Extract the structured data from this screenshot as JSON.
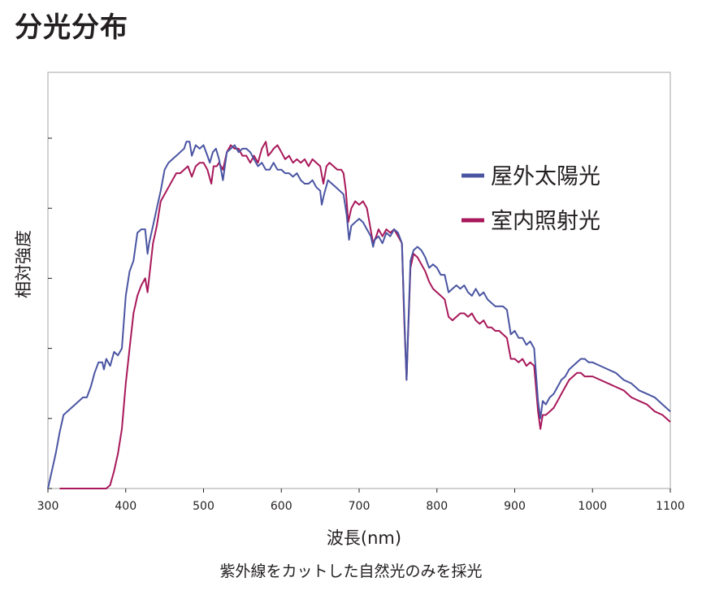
{
  "title": "分光分布",
  "caption": "紫外線をカットした自然光のみを採光",
  "colors": {
    "outdoor": "#4a55a2",
    "indoor": "#a8185a",
    "frame": "#b5b5b5",
    "axis": "#231f20"
  },
  "chart_data": {
    "type": "line",
    "xlabel": "波長(nm)",
    "ylabel": "相対強度",
    "xlim": [
      300,
      1100
    ],
    "ylim": [
      0,
      1
    ],
    "x_ticks": [
      300,
      400,
      500,
      600,
      700,
      800,
      900,
      1000,
      1100
    ],
    "y_ticks": [
      0,
      0.2,
      0.4,
      0.6,
      0.8,
      1.0
    ],
    "grid": false,
    "legend_position": "top-right",
    "series": [
      {
        "name": "屋外太陽光",
        "color": "#4a55a2",
        "points": [
          [
            300,
            0.0
          ],
          [
            305,
            0.05
          ],
          [
            310,
            0.1
          ],
          [
            315,
            0.16
          ],
          [
            320,
            0.21
          ],
          [
            325,
            0.22
          ],
          [
            330,
            0.23
          ],
          [
            335,
            0.24
          ],
          [
            340,
            0.25
          ],
          [
            345,
            0.26
          ],
          [
            350,
            0.26
          ],
          [
            355,
            0.29
          ],
          [
            360,
            0.33
          ],
          [
            365,
            0.36
          ],
          [
            370,
            0.36
          ],
          [
            372,
            0.34
          ],
          [
            375,
            0.37
          ],
          [
            380,
            0.35
          ],
          [
            385,
            0.39
          ],
          [
            390,
            0.38
          ],
          [
            395,
            0.4
          ],
          [
            400,
            0.55
          ],
          [
            405,
            0.62
          ],
          [
            410,
            0.65
          ],
          [
            415,
            0.73
          ],
          [
            420,
            0.74
          ],
          [
            425,
            0.74
          ],
          [
            428,
            0.67
          ],
          [
            430,
            0.7
          ],
          [
            435,
            0.75
          ],
          [
            440,
            0.8
          ],
          [
            445,
            0.85
          ],
          [
            450,
            0.91
          ],
          [
            455,
            0.93
          ],
          [
            460,
            0.94
          ],
          [
            465,
            0.95
          ],
          [
            470,
            0.96
          ],
          [
            475,
            0.97
          ],
          [
            478,
            0.99
          ],
          [
            482,
            0.99
          ],
          [
            485,
            0.95
          ],
          [
            490,
            0.98
          ],
          [
            495,
            0.97
          ],
          [
            500,
            0.98
          ],
          [
            505,
            0.95
          ],
          [
            508,
            0.93
          ],
          [
            512,
            0.96
          ],
          [
            516,
            0.97
          ],
          [
            520,
            0.94
          ],
          [
            525,
            0.88
          ],
          [
            530,
            0.96
          ],
          [
            535,
            0.97
          ],
          [
            540,
            0.98
          ],
          [
            545,
            0.96
          ],
          [
            550,
            0.97
          ],
          [
            555,
            0.97
          ],
          [
            560,
            0.96
          ],
          [
            565,
            0.94
          ],
          [
            570,
            0.92
          ],
          [
            575,
            0.93
          ],
          [
            580,
            0.91
          ],
          [
            585,
            0.91
          ],
          [
            590,
            0.93
          ],
          [
            595,
            0.91
          ],
          [
            600,
            0.91
          ],
          [
            605,
            0.9
          ],
          [
            610,
            0.9
          ],
          [
            615,
            0.89
          ],
          [
            620,
            0.9
          ],
          [
            625,
            0.88
          ],
          [
            630,
            0.87
          ],
          [
            635,
            0.87
          ],
          [
            640,
            0.88
          ],
          [
            645,
            0.86
          ],
          [
            650,
            0.85
          ],
          [
            652,
            0.81
          ],
          [
            655,
            0.84
          ],
          [
            660,
            0.88
          ],
          [
            665,
            0.87
          ],
          [
            670,
            0.86
          ],
          [
            675,
            0.85
          ],
          [
            680,
            0.84
          ],
          [
            684,
            0.78
          ],
          [
            687,
            0.71
          ],
          [
            690,
            0.75
          ],
          [
            695,
            0.76
          ],
          [
            700,
            0.77
          ],
          [
            705,
            0.76
          ],
          [
            710,
            0.74
          ],
          [
            715,
            0.72
          ],
          [
            718,
            0.69
          ],
          [
            720,
            0.71
          ],
          [
            725,
            0.72
          ],
          [
            730,
            0.7
          ],
          [
            735,
            0.73
          ],
          [
            740,
            0.72
          ],
          [
            745,
            0.74
          ],
          [
            750,
            0.73
          ],
          [
            755,
            0.7
          ],
          [
            758,
            0.5
          ],
          [
            761,
            0.31
          ],
          [
            763,
            0.45
          ],
          [
            766,
            0.65
          ],
          [
            770,
            0.68
          ],
          [
            775,
            0.69
          ],
          [
            780,
            0.68
          ],
          [
            785,
            0.66
          ],
          [
            790,
            0.63
          ],
          [
            795,
            0.64
          ],
          [
            800,
            0.63
          ],
          [
            805,
            0.61
          ],
          [
            810,
            0.61
          ],
          [
            815,
            0.56
          ],
          [
            820,
            0.57
          ],
          [
            825,
            0.58
          ],
          [
            830,
            0.57
          ],
          [
            835,
            0.58
          ],
          [
            840,
            0.56
          ],
          [
            845,
            0.55
          ],
          [
            850,
            0.57
          ],
          [
            855,
            0.55
          ],
          [
            860,
            0.56
          ],
          [
            865,
            0.54
          ],
          [
            870,
            0.53
          ],
          [
            875,
            0.52
          ],
          [
            880,
            0.52
          ],
          [
            885,
            0.52
          ],
          [
            890,
            0.51
          ],
          [
            895,
            0.44
          ],
          [
            900,
            0.45
          ],
          [
            905,
            0.43
          ],
          [
            910,
            0.43
          ],
          [
            915,
            0.41
          ],
          [
            920,
            0.42
          ],
          [
            925,
            0.4
          ],
          [
            930,
            0.25
          ],
          [
            933,
            0.2
          ],
          [
            936,
            0.25
          ],
          [
            940,
            0.24
          ],
          [
            945,
            0.26
          ],
          [
            950,
            0.27
          ],
          [
            955,
            0.29
          ],
          [
            960,
            0.31
          ],
          [
            965,
            0.32
          ],
          [
            970,
            0.34
          ],
          [
            975,
            0.35
          ],
          [
            980,
            0.36
          ],
          [
            985,
            0.37
          ],
          [
            990,
            0.37
          ],
          [
            995,
            0.36
          ],
          [
            1000,
            0.36
          ],
          [
            1010,
            0.35
          ],
          [
            1020,
            0.34
          ],
          [
            1030,
            0.33
          ],
          [
            1040,
            0.31
          ],
          [
            1050,
            0.3
          ],
          [
            1060,
            0.28
          ],
          [
            1070,
            0.27
          ],
          [
            1080,
            0.26
          ],
          [
            1090,
            0.24
          ],
          [
            1095,
            0.23
          ],
          [
            1100,
            0.22
          ]
        ]
      },
      {
        "name": "室内照射光",
        "color": "#a8185a",
        "points": [
          [
            315,
            0.0
          ],
          [
            365,
            0.0
          ],
          [
            375,
            0.0
          ],
          [
            380,
            0.01
          ],
          [
            385,
            0.05
          ],
          [
            390,
            0.1
          ],
          [
            395,
            0.17
          ],
          [
            400,
            0.3
          ],
          [
            405,
            0.4
          ],
          [
            410,
            0.5
          ],
          [
            415,
            0.55
          ],
          [
            420,
            0.58
          ],
          [
            425,
            0.6
          ],
          [
            428,
            0.56
          ],
          [
            430,
            0.6
          ],
          [
            435,
            0.7
          ],
          [
            440,
            0.75
          ],
          [
            445,
            0.82
          ],
          [
            450,
            0.84
          ],
          [
            455,
            0.86
          ],
          [
            460,
            0.88
          ],
          [
            465,
            0.9
          ],
          [
            470,
            0.9
          ],
          [
            475,
            0.91
          ],
          [
            480,
            0.92
          ],
          [
            485,
            0.89
          ],
          [
            490,
            0.92
          ],
          [
            495,
            0.93
          ],
          [
            500,
            0.93
          ],
          [
            505,
            0.91
          ],
          [
            510,
            0.87
          ],
          [
            513,
            0.92
          ],
          [
            517,
            0.92
          ],
          [
            520,
            0.93
          ],
          [
            525,
            0.91
          ],
          [
            530,
            0.96
          ],
          [
            535,
            0.98
          ],
          [
            540,
            0.97
          ],
          [
            545,
            0.97
          ],
          [
            550,
            0.95
          ],
          [
            555,
            0.95
          ],
          [
            560,
            0.93
          ],
          [
            565,
            0.95
          ],
          [
            570,
            0.93
          ],
          [
            575,
            0.97
          ],
          [
            580,
            0.99
          ],
          [
            583,
            0.95
          ],
          [
            587,
            0.96
          ],
          [
            590,
            0.97
          ],
          [
            595,
            0.98
          ],
          [
            600,
            0.96
          ],
          [
            605,
            0.94
          ],
          [
            610,
            0.95
          ],
          [
            615,
            0.93
          ],
          [
            620,
            0.94
          ],
          [
            625,
            0.93
          ],
          [
            630,
            0.94
          ],
          [
            635,
            0.92
          ],
          [
            640,
            0.94
          ],
          [
            645,
            0.93
          ],
          [
            650,
            0.92
          ],
          [
            654,
            0.87
          ],
          [
            658,
            0.92
          ],
          [
            662,
            0.93
          ],
          [
            667,
            0.92
          ],
          [
            672,
            0.91
          ],
          [
            677,
            0.91
          ],
          [
            680,
            0.9
          ],
          [
            683,
            0.85
          ],
          [
            686,
            0.76
          ],
          [
            690,
            0.8
          ],
          [
            695,
            0.82
          ],
          [
            700,
            0.81
          ],
          [
            705,
            0.82
          ],
          [
            710,
            0.8
          ],
          [
            714,
            0.75
          ],
          [
            718,
            0.7
          ],
          [
            722,
            0.72
          ],
          [
            725,
            0.74
          ],
          [
            730,
            0.72
          ],
          [
            735,
            0.74
          ],
          [
            740,
            0.73
          ],
          [
            745,
            0.74
          ],
          [
            750,
            0.72
          ],
          [
            755,
            0.7
          ],
          [
            758,
            0.48
          ],
          [
            761,
            0.31
          ],
          [
            763,
            0.44
          ],
          [
            766,
            0.63
          ],
          [
            770,
            0.67
          ],
          [
            775,
            0.66
          ],
          [
            780,
            0.64
          ],
          [
            785,
            0.62
          ],
          [
            790,
            0.59
          ],
          [
            795,
            0.57
          ],
          [
            800,
            0.56
          ],
          [
            805,
            0.55
          ],
          [
            810,
            0.54
          ],
          [
            815,
            0.49
          ],
          [
            820,
            0.48
          ],
          [
            825,
            0.49
          ],
          [
            830,
            0.5
          ],
          [
            835,
            0.5
          ],
          [
            840,
            0.49
          ],
          [
            845,
            0.5
          ],
          [
            850,
            0.48
          ],
          [
            855,
            0.47
          ],
          [
            860,
            0.48
          ],
          [
            865,
            0.46
          ],
          [
            870,
            0.46
          ],
          [
            875,
            0.45
          ],
          [
            880,
            0.45
          ],
          [
            885,
            0.44
          ],
          [
            890,
            0.43
          ],
          [
            895,
            0.37
          ],
          [
            900,
            0.37
          ],
          [
            905,
            0.36
          ],
          [
            910,
            0.37
          ],
          [
            915,
            0.35
          ],
          [
            920,
            0.36
          ],
          [
            925,
            0.35
          ],
          [
            930,
            0.22
          ],
          [
            933,
            0.17
          ],
          [
            936,
            0.21
          ],
          [
            940,
            0.21
          ],
          [
            945,
            0.22
          ],
          [
            950,
            0.23
          ],
          [
            955,
            0.25
          ],
          [
            960,
            0.27
          ],
          [
            965,
            0.29
          ],
          [
            970,
            0.31
          ],
          [
            975,
            0.32
          ],
          [
            980,
            0.33
          ],
          [
            985,
            0.33
          ],
          [
            990,
            0.32
          ],
          [
            1000,
            0.32
          ],
          [
            1010,
            0.31
          ],
          [
            1020,
            0.3
          ],
          [
            1030,
            0.29
          ],
          [
            1040,
            0.28
          ],
          [
            1050,
            0.26
          ],
          [
            1060,
            0.25
          ],
          [
            1070,
            0.24
          ],
          [
            1080,
            0.22
          ],
          [
            1090,
            0.21
          ],
          [
            1100,
            0.19
          ]
        ]
      }
    ]
  }
}
